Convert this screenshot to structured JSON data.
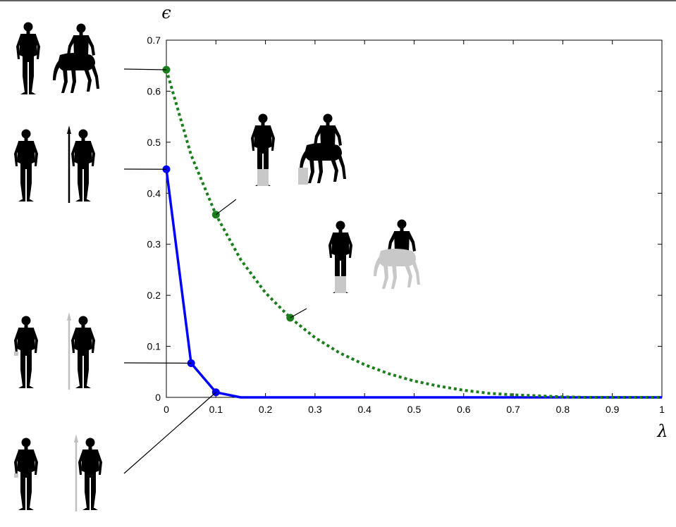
{
  "chart_data": {
    "type": "line",
    "title": "",
    "xlabel": "λ",
    "ylabel": "ϵ",
    "xlim": [
      0,
      1
    ],
    "ylim": [
      0,
      0.7
    ],
    "x_ticks": [
      "0",
      "0.1",
      "0.2",
      "0.3",
      "0.4",
      "0.5",
      "0.6",
      "0.7",
      "0.8",
      "0.9",
      "1"
    ],
    "y_ticks": [
      "0",
      "0.1",
      "0.2",
      "0.3",
      "0.4",
      "0.5",
      "0.6",
      "0.7"
    ],
    "grid": false,
    "legend": "none",
    "series": [
      {
        "color": "#0000ff",
        "line_style": "solid",
        "x": [
          0,
          0.05,
          0.1,
          0.15,
          0.2,
          0.3,
          0.4,
          0.5,
          0.6,
          0.7,
          0.8,
          0.9,
          1.0
        ],
        "y": [
          0.447,
          0.067,
          0.01,
          0.0,
          0.0,
          0.0,
          0.0,
          0.0,
          0.0,
          0.0,
          0.0,
          0.0,
          0.0
        ],
        "markers": [
          {
            "x": 0,
            "y": 0.447
          },
          {
            "x": 0.05,
            "y": 0.067
          },
          {
            "x": 0.1,
            "y": 0.01
          }
        ]
      },
      {
        "color": "#1a7f1a",
        "line_style": "dotted",
        "x": [
          0,
          0.05,
          0.1,
          0.15,
          0.2,
          0.25,
          0.3,
          0.35,
          0.4,
          0.45,
          0.5,
          0.55,
          0.6,
          0.65,
          0.7,
          0.75,
          0.8,
          0.85,
          0.9,
          0.95,
          1.0
        ],
        "y": [
          0.642,
          0.475,
          0.358,
          0.27,
          0.205,
          0.156,
          0.117,
          0.087,
          0.064,
          0.046,
          0.032,
          0.022,
          0.014,
          0.008,
          0.005,
          0.003,
          0.001,
          0.0,
          0.0,
          0.0,
          0.0
        ],
        "markers": [
          {
            "x": 0,
            "y": 0.642
          },
          {
            "x": 0.1,
            "y": 0.358
          },
          {
            "x": 0.25,
            "y": 0.156
          }
        ]
      }
    ],
    "annotation_icons": [
      {
        "id": "left-man-centaur",
        "pair": [
          "man",
          "centaur"
        ],
        "gray_parts": "none",
        "points_to": {
          "x": 0,
          "y": 0.642
        }
      },
      {
        "id": "left-man-spearman",
        "pair": [
          "man",
          "man-with-spear"
        ],
        "gray_parts": "none",
        "points_to": {
          "x": 0,
          "y": 0.447
        }
      },
      {
        "id": "left-man-spearman-gray-spear",
        "pair": [
          "man",
          "man-with-spear"
        ],
        "gray_parts": "hand and spear",
        "points_to": {
          "x": 0.05,
          "y": 0.067
        }
      },
      {
        "id": "left-man-spearman-gray-spear-2",
        "pair": [
          "man",
          "man-with-spear"
        ],
        "gray_parts": "hand and spear",
        "points_to": {
          "x": 0.1,
          "y": 0.01
        }
      },
      {
        "id": "inner-man-centaur-gray-legs",
        "pair": [
          "man",
          "centaur"
        ],
        "gray_parts": "lower legs",
        "points_to": {
          "x": 0.1,
          "y": 0.358
        }
      },
      {
        "id": "inner-man-centaur-gray-body",
        "pair": [
          "man",
          "centaur"
        ],
        "gray_parts": "legs and horse body",
        "points_to": {
          "x": 0.25,
          "y": 0.156
        }
      }
    ]
  }
}
